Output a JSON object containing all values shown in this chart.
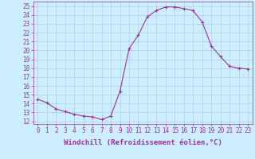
{
  "x": [
    0,
    1,
    2,
    3,
    4,
    5,
    6,
    7,
    8,
    9,
    10,
    11,
    12,
    13,
    14,
    15,
    16,
    17,
    18,
    19,
    20,
    21,
    22,
    23
  ],
  "y": [
    14.5,
    14.1,
    13.4,
    13.1,
    12.8,
    12.6,
    12.5,
    12.2,
    12.6,
    15.4,
    20.2,
    21.7,
    23.8,
    24.5,
    24.9,
    24.9,
    24.7,
    24.5,
    23.2,
    20.5,
    19.3,
    18.2,
    18.0,
    17.9
  ],
  "line_color": "#993399",
  "marker": "+",
  "bg_color": "#cceeff",
  "grid_color": "#aaccdd",
  "xlabel": "Windchill (Refroidissement éolien,°C)",
  "ylabel_ticks": [
    12,
    13,
    14,
    15,
    16,
    17,
    18,
    19,
    20,
    21,
    22,
    23,
    24,
    25
  ],
  "xlim": [
    -0.5,
    23.5
  ],
  "ylim": [
    11.7,
    25.5
  ],
  "xlabel_color": "#993399",
  "tick_color": "#993399",
  "label_fontsize": 6.5,
  "tick_fontsize": 5.5
}
